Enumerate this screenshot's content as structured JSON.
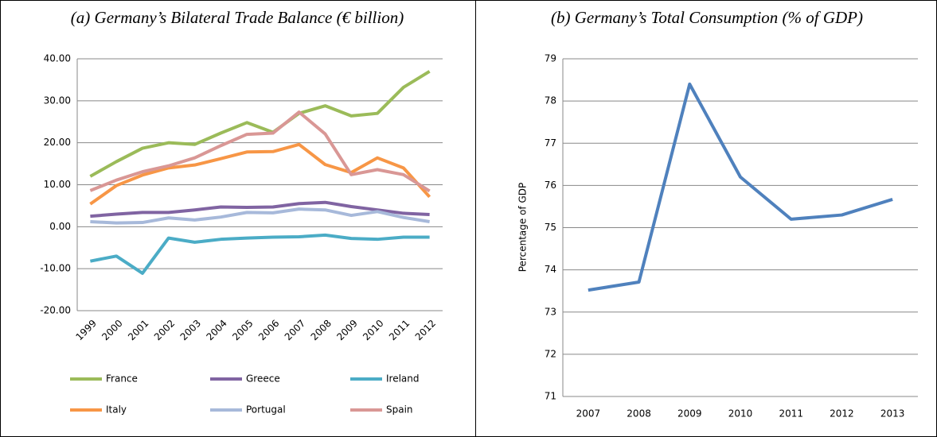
{
  "chart_data": [
    {
      "type": "line",
      "title": "(a) Germany’s Bilateral Trade Balance (€ billion)",
      "categories": [
        "1999",
        "2000",
        "2001",
        "2002",
        "2003",
        "2004",
        "2005",
        "2006",
        "2007",
        "2008",
        "2009",
        "2010",
        "2011",
        "2012"
      ],
      "ylim": [
        -20,
        40
      ],
      "yticks": [
        {
          "value": -20,
          "label": "-20.00"
        },
        {
          "value": -10,
          "label": "-10.00"
        },
        {
          "value": 0,
          "label": "0.00"
        },
        {
          "value": 10,
          "label": "10.00"
        },
        {
          "value": 20,
          "label": "20.00"
        },
        {
          "value": 30,
          "label": "30.00"
        },
        {
          "value": 40,
          "label": "40.00"
        }
      ],
      "grid": true,
      "legend": "bottom",
      "series": [
        {
          "name": "France",
          "color": "#9bbb59",
          "values": [
            12.0,
            15.5,
            18.7,
            20.0,
            19.6,
            22.3,
            24.8,
            22.5,
            27.0,
            28.8,
            26.4,
            27.0,
            33.2,
            37.0
          ]
        },
        {
          "name": "Greece",
          "color": "#8064a2",
          "values": [
            2.5,
            3.0,
            3.4,
            3.4,
            4.0,
            4.7,
            4.6,
            4.7,
            5.5,
            5.8,
            4.8,
            4.0,
            3.2,
            2.9
          ]
        },
        {
          "name": "Ireland",
          "color": "#4bacc6",
          "values": [
            -8.2,
            -7.0,
            -11.1,
            -2.7,
            -3.7,
            -3.0,
            -2.7,
            -2.5,
            -2.4,
            -2.0,
            -2.8,
            -3.0,
            -2.5,
            -2.5
          ]
        },
        {
          "name": "Italy",
          "color": "#f79646",
          "values": [
            5.4,
            9.8,
            12.3,
            14.0,
            14.7,
            16.2,
            17.8,
            17.9,
            19.6,
            14.8,
            12.9,
            16.4,
            14.0,
            7.1
          ]
        },
        {
          "name": "Portugal",
          "color": "#a7b9da",
          "values": [
            1.2,
            0.9,
            1.0,
            2.1,
            1.6,
            2.3,
            3.4,
            3.3,
            4.2,
            4.0,
            2.7,
            3.6,
            2.2,
            1.2
          ]
        },
        {
          "name": "Spain",
          "color": "#d99795",
          "values": [
            8.6,
            11.1,
            13.1,
            14.5,
            16.4,
            19.3,
            22.0,
            22.3,
            27.3,
            22.1,
            12.4,
            13.6,
            12.4,
            8.5
          ]
        }
      ]
    },
    {
      "type": "line",
      "title": "(b) Germany’s Total Consumption (% of GDP)",
      "y_label": "Percentage of GDP",
      "categories": [
        "2007",
        "2008",
        "2009",
        "2010",
        "2011",
        "2012",
        "2013"
      ],
      "values": [
        73.52,
        73.71,
        78.4,
        76.2,
        75.2,
        75.3,
        75.67
      ],
      "color": "#4f81bd",
      "ylim": [
        71,
        79
      ],
      "yticks": [
        71,
        72,
        73,
        74,
        75,
        76,
        77,
        78,
        79
      ],
      "grid": true
    }
  ]
}
